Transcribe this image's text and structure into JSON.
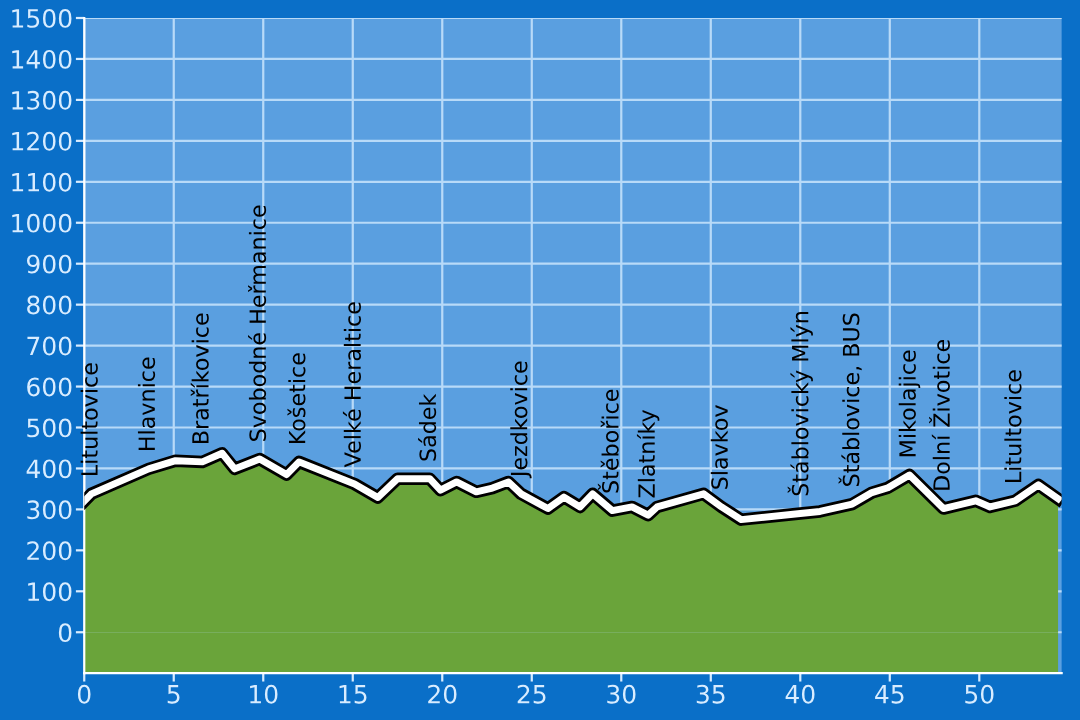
{
  "chart_data": {
    "type": "area",
    "x": [
      0,
      0.4,
      3.6,
      5.1,
      6.6,
      7.7,
      8.4,
      9.8,
      11.3,
      12.0,
      15.1,
      16.4,
      17.5,
      19.3,
      19.9,
      20.8,
      21.9,
      22.8,
      23.7,
      24.4,
      25.9,
      26.8,
      27.7,
      28.4,
      29.5,
      30.6,
      31.5,
      32.0,
      34.6,
      35.6,
      36.7,
      40.0,
      41.1,
      42.9,
      44.0,
      44.9,
      46.1,
      48.0,
      49.8,
      50.6,
      52.0,
      53.3,
      54.4
    ],
    "series": [
      {
        "color": "#6aa43a",
        "values": [
          320,
          338,
          399,
          419,
          416,
          437,
          399,
          423,
          385,
          416,
          362,
          329,
          375,
          375,
          347,
          367,
          343,
          352,
          367,
          338,
          302,
          330,
          306,
          338,
          297,
          306,
          286,
          306,
          338,
          306,
          275,
          290,
          295,
          313,
          341,
          353,
          384,
          302,
          321,
          306,
          321,
          360,
          326
        ]
      }
    ],
    "xlim": [
      0,
      54.6
    ],
    "ylim": [
      -100,
      1500
    ],
    "xticks": [
      0,
      5,
      10,
      15,
      20,
      25,
      30,
      35,
      40,
      45,
      50
    ],
    "yticks": [
      0,
      100,
      200,
      300,
      400,
      500,
      600,
      700,
      800,
      900,
      1000,
      1100,
      1200,
      1300,
      1400,
      1500
    ],
    "grid": true,
    "annotations": [
      {
        "text": "Litultovice",
        "x": 0.4,
        "y": 338
      },
      {
        "text": "Hlavnice",
        "x": 3.6,
        "y": 399
      },
      {
        "text": "Bratříkovice",
        "x": 6.6,
        "y": 416
      },
      {
        "text": "Svobodné Heřmanice",
        "x": 9.8,
        "y": 423
      },
      {
        "text": "Košetice",
        "x": 12.0,
        "y": 416
      },
      {
        "text": "Velké Heraltice",
        "x": 15.1,
        "y": 362
      },
      {
        "text": "Sádek",
        "x": 19.3,
        "y": 375
      },
      {
        "text": "Jezdkovice",
        "x": 24.4,
        "y": 338
      },
      {
        "text": "Štěbořice",
        "x": 29.5,
        "y": 297
      },
      {
        "text": "Zlatníky",
        "x": 31.5,
        "y": 286
      },
      {
        "text": "Slavkov",
        "x": 35.6,
        "y": 306
      },
      {
        "text": "Štáblovický Mlýn",
        "x": 40.0,
        "y": 290
      },
      {
        "text": "Štáblovice, BUS",
        "x": 42.9,
        "y": 313
      },
      {
        "text": "Mikolajice",
        "x": 46.1,
        "y": 384
      },
      {
        "text": "Dolní Životice",
        "x": 48.0,
        "y": 302
      },
      {
        "text": "Litultovice",
        "x": 52.0,
        "y": 321
      }
    ]
  }
}
